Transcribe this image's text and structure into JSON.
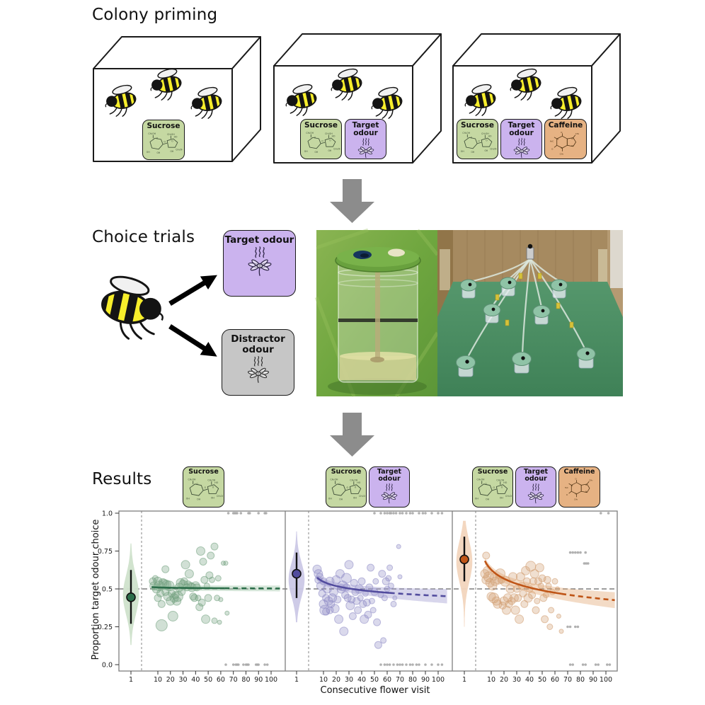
{
  "sections": {
    "colony_priming": {
      "title": "Colony priming"
    },
    "choice_trials": {
      "title": "Choice trials"
    },
    "results": {
      "title": "Results"
    }
  },
  "cards": {
    "sucrose": {
      "label": "Sucrose",
      "color": "#c5d8a2"
    },
    "target_odour": {
      "label": "Target odour",
      "color": "#cbb3ee"
    },
    "distractor_odour": {
      "label": "Distractor odour",
      "color": "#c6c6c6"
    },
    "caffeine": {
      "label": "Caffeine",
      "color": "#e6b283"
    }
  },
  "priming_boxes": [
    {
      "bees": 3,
      "cards": [
        "Sucrose"
      ]
    },
    {
      "bees": 3,
      "cards": [
        "Sucrose",
        "Target odour"
      ]
    },
    {
      "bees": 3,
      "cards": [
        "Sucrose",
        "Target odour",
        "Caffeine"
      ]
    }
  ],
  "flow_arrow_color": "#8c8c8c",
  "chart_data": {
    "type": "scatter",
    "xlabel": "Consecutive flower visit",
    "ylabel": "Proportion target odour choice",
    "y_ticks": [
      "1.0",
      "0.75",
      "0.5",
      "0.25",
      "0.0"
    ],
    "x_ticks": [
      "1",
      "10",
      "20",
      "30",
      "40",
      "50",
      "60",
      "70",
      "80",
      "90",
      "100"
    ],
    "reference_line_y": 0.5,
    "panels": [
      {
        "condition": [
          "Sucrose"
        ],
        "colors": {
          "scatter": "#6f9e7c",
          "trend": "#2c6e4a",
          "violin": "#cfe2cb",
          "ribbon": "#9cc4a4",
          "point": "#2c6e4a"
        },
        "violin": {
          "mean": 0.445,
          "ci": [
            0.27,
            0.625
          ],
          "range": [
            0.13,
            0.8
          ],
          "mode": 0.46
        },
        "trend": {
          "a": 0.512,
          "b": -0.003,
          "w0": 0.017,
          "wg": 2e-05,
          "x_start": 5,
          "x_solid_end": 63,
          "x_end": 107
        },
        "points": [
          [
            6,
            0.55,
            5
          ],
          [
            7,
            0.52,
            6
          ],
          [
            8,
            0.57,
            4
          ],
          [
            9,
            0.5,
            6
          ],
          [
            10,
            0.55,
            6
          ],
          [
            10,
            0.44,
            5
          ],
          [
            11,
            0.52,
            7
          ],
          [
            12,
            0.47,
            5
          ],
          [
            13,
            0.26,
            8
          ],
          [
            13,
            0.4,
            5
          ],
          [
            14,
            0.54,
            6
          ],
          [
            15,
            0.53,
            7
          ],
          [
            16,
            0.48,
            5
          ],
          [
            16,
            0.63,
            5
          ],
          [
            17,
            0.53,
            6
          ],
          [
            18,
            0.45,
            6
          ],
          [
            19,
            0.52,
            7
          ],
          [
            20,
            0.42,
            6
          ],
          [
            21,
            0.47,
            5
          ],
          [
            22,
            0.32,
            7
          ],
          [
            23,
            0.44,
            6
          ],
          [
            24,
            0.46,
            5
          ],
          [
            25,
            0.42,
            6
          ],
          [
            26,
            0.45,
            7
          ],
          [
            27,
            0.51,
            6
          ],
          [
            28,
            0.54,
            6
          ],
          [
            29,
            0.48,
            5
          ],
          [
            30,
            0.53,
            6
          ],
          [
            31,
            0.55,
            5
          ],
          [
            32,
            0.66,
            6
          ],
          [
            33,
            0.51,
            5
          ],
          [
            34,
            0.53,
            5
          ],
          [
            35,
            0.6,
            6
          ],
          [
            36,
            0.52,
            5
          ],
          [
            37,
            0.51,
            6
          ],
          [
            38,
            0.45,
            5
          ],
          [
            39,
            0.44,
            5
          ],
          [
            40,
            0.52,
            6
          ],
          [
            41,
            0.51,
            5
          ],
          [
            42,
            0.44,
            4
          ],
          [
            43,
            0.38,
            5
          ],
          [
            44,
            0.75,
            6
          ],
          [
            45,
            0.41,
            5
          ],
          [
            46,
            0.68,
            5
          ],
          [
            47,
            0.56,
            5
          ],
          [
            48,
            0.3,
            6
          ],
          [
            49,
            0.52,
            4
          ],
          [
            50,
            0.44,
            5
          ],
          [
            51,
            0.59,
            5
          ],
          [
            52,
            0.72,
            5
          ],
          [
            53,
            0.56,
            4
          ],
          [
            55,
            0.78,
            5
          ],
          [
            55,
            0.29,
            4
          ],
          [
            57,
            0.44,
            4
          ],
          [
            58,
            0.57,
            4
          ],
          [
            59,
            0.28,
            3
          ],
          [
            60,
            0.43,
            3
          ],
          [
            62,
            0.67,
            3
          ],
          [
            64,
            0.67,
            3
          ],
          [
            65,
            0.34,
            3
          ]
        ],
        "top_x": [
          66,
          70,
          71,
          72,
          73,
          76,
          82,
          83,
          90,
          95,
          96
        ],
        "bottom_x": [
          64,
          70,
          72,
          73,
          74,
          78,
          80,
          81,
          82,
          88,
          89,
          90,
          95,
          97
        ],
        "extra_gray": []
      },
      {
        "condition": [
          "Sucrose",
          "Target odour"
        ],
        "colors": {
          "scatter": "#8d88c4",
          "trend": "#524c9e",
          "violin": "#cbc8e6",
          "ribbon": "#a29dd2",
          "point": "#524c9e"
        },
        "violin": {
          "mean": 0.6,
          "ci": [
            0.44,
            0.74
          ],
          "range": [
            0.28,
            0.88
          ],
          "mode": 0.56
        },
        "trend": {
          "a": 0.575,
          "b": -0.0402,
          "w0": 0.02,
          "wg": 0.00027,
          "x_start": 5,
          "x_solid_end": 62,
          "x_end": 107
        },
        "points": [
          [
            5,
            0.63,
            6
          ],
          [
            6,
            0.6,
            6
          ],
          [
            6,
            0.56,
            5
          ],
          [
            7,
            0.58,
            5
          ],
          [
            8,
            0.52,
            6
          ],
          [
            9,
            0.47,
            5
          ],
          [
            10,
            0.55,
            5
          ],
          [
            10,
            0.4,
            6
          ],
          [
            11,
            0.36,
            7
          ],
          [
            12,
            0.35,
            5
          ],
          [
            12,
            0.44,
            5
          ],
          [
            13,
            0.5,
            6
          ],
          [
            14,
            0.42,
            6
          ],
          [
            15,
            0.55,
            6
          ],
          [
            15,
            0.36,
            5
          ],
          [
            16,
            0.4,
            5
          ],
          [
            17,
            0.44,
            6
          ],
          [
            18,
            0.48,
            6
          ],
          [
            19,
            0.37,
            6
          ],
          [
            20,
            0.56,
            6
          ],
          [
            21,
            0.43,
            5
          ],
          [
            22,
            0.3,
            6
          ],
          [
            23,
            0.6,
            6
          ],
          [
            24,
            0.5,
            6
          ],
          [
            25,
            0.52,
            7
          ],
          [
            26,
            0.22,
            6
          ],
          [
            27,
            0.46,
            5
          ],
          [
            28,
            0.57,
            7
          ],
          [
            28,
            0.51,
            5
          ],
          [
            29,
            0.44,
            5
          ],
          [
            30,
            0.66,
            6
          ],
          [
            31,
            0.39,
            6
          ],
          [
            32,
            0.43,
            5
          ],
          [
            33,
            0.32,
            5
          ],
          [
            34,
            0.54,
            5
          ],
          [
            35,
            0.48,
            5
          ],
          [
            36,
            0.42,
            5
          ],
          [
            37,
            0.36,
            5
          ],
          [
            38,
            0.5,
            6
          ],
          [
            39,
            0.44,
            4
          ],
          [
            40,
            0.55,
            5
          ],
          [
            41,
            0.4,
            5
          ],
          [
            42,
            0.3,
            6
          ],
          [
            43,
            0.47,
            4
          ],
          [
            44,
            0.41,
            5
          ],
          [
            45,
            0.33,
            5
          ],
          [
            46,
            0.51,
            5
          ],
          [
            47,
            0.64,
            5
          ],
          [
            48,
            0.42,
            4
          ],
          [
            49,
            0.36,
            4
          ],
          [
            50,
            0.48,
            5
          ],
          [
            51,
            0.55,
            4
          ],
          [
            52,
            0.28,
            5
          ],
          [
            53,
            0.13,
            5
          ],
          [
            55,
            0.46,
            4
          ],
          [
            56,
            0.6,
            5
          ],
          [
            57,
            0.16,
            4
          ],
          [
            58,
            0.44,
            4
          ],
          [
            59,
            0.55,
            5
          ],
          [
            60,
            0.5,
            4
          ],
          [
            61,
            0.57,
            4
          ],
          [
            62,
            0.64,
            4
          ],
          [
            63,
            0.52,
            4
          ],
          [
            65,
            0.4,
            4
          ],
          [
            66,
            0.44,
            3
          ],
          [
            69,
            0.78,
            3
          ],
          [
            70,
            0.58,
            3
          ]
        ],
        "top_x": [
          50,
          55,
          58,
          60,
          62,
          63,
          65,
          67,
          70,
          72,
          75,
          78,
          80,
          85,
          88,
          90,
          95,
          100,
          103
        ],
        "bottom_x": [
          55,
          58,
          60,
          62,
          65,
          68,
          70,
          72,
          75,
          78,
          80,
          83,
          85,
          90,
          95,
          100,
          103
        ],
        "extra_gray": []
      },
      {
        "condition": [
          "Sucrose",
          "Target odour",
          "Caffeine"
        ],
        "colors": {
          "scatter": "#d09a6e",
          "trend": "#bf5517",
          "violin": "#f2d5bd",
          "ribbon": "#e2a978",
          "point": "#bf5517"
        },
        "violin": {
          "mean": 0.695,
          "ci": [
            0.55,
            0.845
          ],
          "range": [
            0.25,
            0.95
          ],
          "mode": 0.68
        },
        "trend": {
          "a": 0.685,
          "b": -0.0846,
          "w0": 0.022,
          "wg": 0.0003,
          "x_start": 5,
          "x_solid_end": 65,
          "x_end": 107
        },
        "points": [
          [
            5,
            0.6,
            6
          ],
          [
            6,
            0.72,
            5
          ],
          [
            6,
            0.56,
            6
          ],
          [
            7,
            0.62,
            6
          ],
          [
            8,
            0.58,
            7
          ],
          [
            9,
            0.54,
            6
          ],
          [
            10,
            0.45,
            6
          ],
          [
            11,
            0.52,
            6
          ],
          [
            12,
            0.44,
            7
          ],
          [
            12,
            0.58,
            5
          ],
          [
            13,
            0.55,
            6
          ],
          [
            14,
            0.42,
            6
          ],
          [
            15,
            0.4,
            6
          ],
          [
            16,
            0.56,
            6
          ],
          [
            17,
            0.6,
            7
          ],
          [
            18,
            0.56,
            5
          ],
          [
            19,
            0.39,
            5
          ],
          [
            20,
            0.42,
            6
          ],
          [
            21,
            0.55,
            7
          ],
          [
            22,
            0.36,
            6
          ],
          [
            23,
            0.44,
            6
          ],
          [
            24,
            0.4,
            5
          ],
          [
            25,
            0.5,
            6
          ],
          [
            26,
            0.42,
            5
          ],
          [
            27,
            0.58,
            6
          ],
          [
            28,
            0.44,
            6
          ],
          [
            29,
            0.36,
            6
          ],
          [
            30,
            0.5,
            5
          ],
          [
            31,
            0.44,
            5
          ],
          [
            32,
            0.3,
            6
          ],
          [
            33,
            0.58,
            6
          ],
          [
            34,
            0.52,
            5
          ],
          [
            35,
            0.47,
            5
          ],
          [
            36,
            0.4,
            5
          ],
          [
            37,
            0.62,
            6
          ],
          [
            38,
            0.55,
            5
          ],
          [
            39,
            0.44,
            6
          ],
          [
            40,
            0.5,
            5
          ],
          [
            41,
            0.65,
            7
          ],
          [
            42,
            0.46,
            5
          ],
          [
            43,
            0.55,
            5
          ],
          [
            44,
            0.6,
            6
          ],
          [
            45,
            0.36,
            5
          ],
          [
            46,
            0.42,
            4
          ],
          [
            47,
            0.55,
            5
          ],
          [
            48,
            0.64,
            6
          ],
          [
            49,
            0.52,
            4
          ],
          [
            50,
            0.57,
            5
          ],
          [
            51,
            0.44,
            5
          ],
          [
            52,
            0.3,
            5
          ],
          [
            53,
            0.46,
            4
          ],
          [
            54,
            0.56,
            5
          ],
          [
            55,
            0.52,
            4
          ],
          [
            56,
            0.25,
            4
          ],
          [
            57,
            0.36,
            4
          ],
          [
            58,
            0.48,
            4
          ],
          [
            60,
            0.55,
            4
          ],
          [
            62,
            0.5,
            3
          ],
          [
            63,
            0.32,
            3
          ],
          [
            65,
            0.22,
            3
          ]
        ],
        "top_x": [
          96,
          102
        ],
        "bottom_x": [
          72,
          74,
          82,
          84,
          92,
          94,
          101,
          103
        ],
        "extra_gray": [
          [
            72,
            0.74
          ],
          [
            74,
            0.74
          ],
          [
            76,
            0.74
          ],
          [
            78,
            0.74
          ],
          [
            80,
            0.74
          ],
          [
            84,
            0.74
          ],
          [
            83,
            0.668
          ],
          [
            84.5,
            0.668
          ],
          [
            86,
            0.668
          ],
          [
            70,
            0.25
          ],
          [
            72,
            0.25
          ],
          [
            76,
            0.25
          ],
          [
            78,
            0.25
          ]
        ]
      }
    ]
  }
}
